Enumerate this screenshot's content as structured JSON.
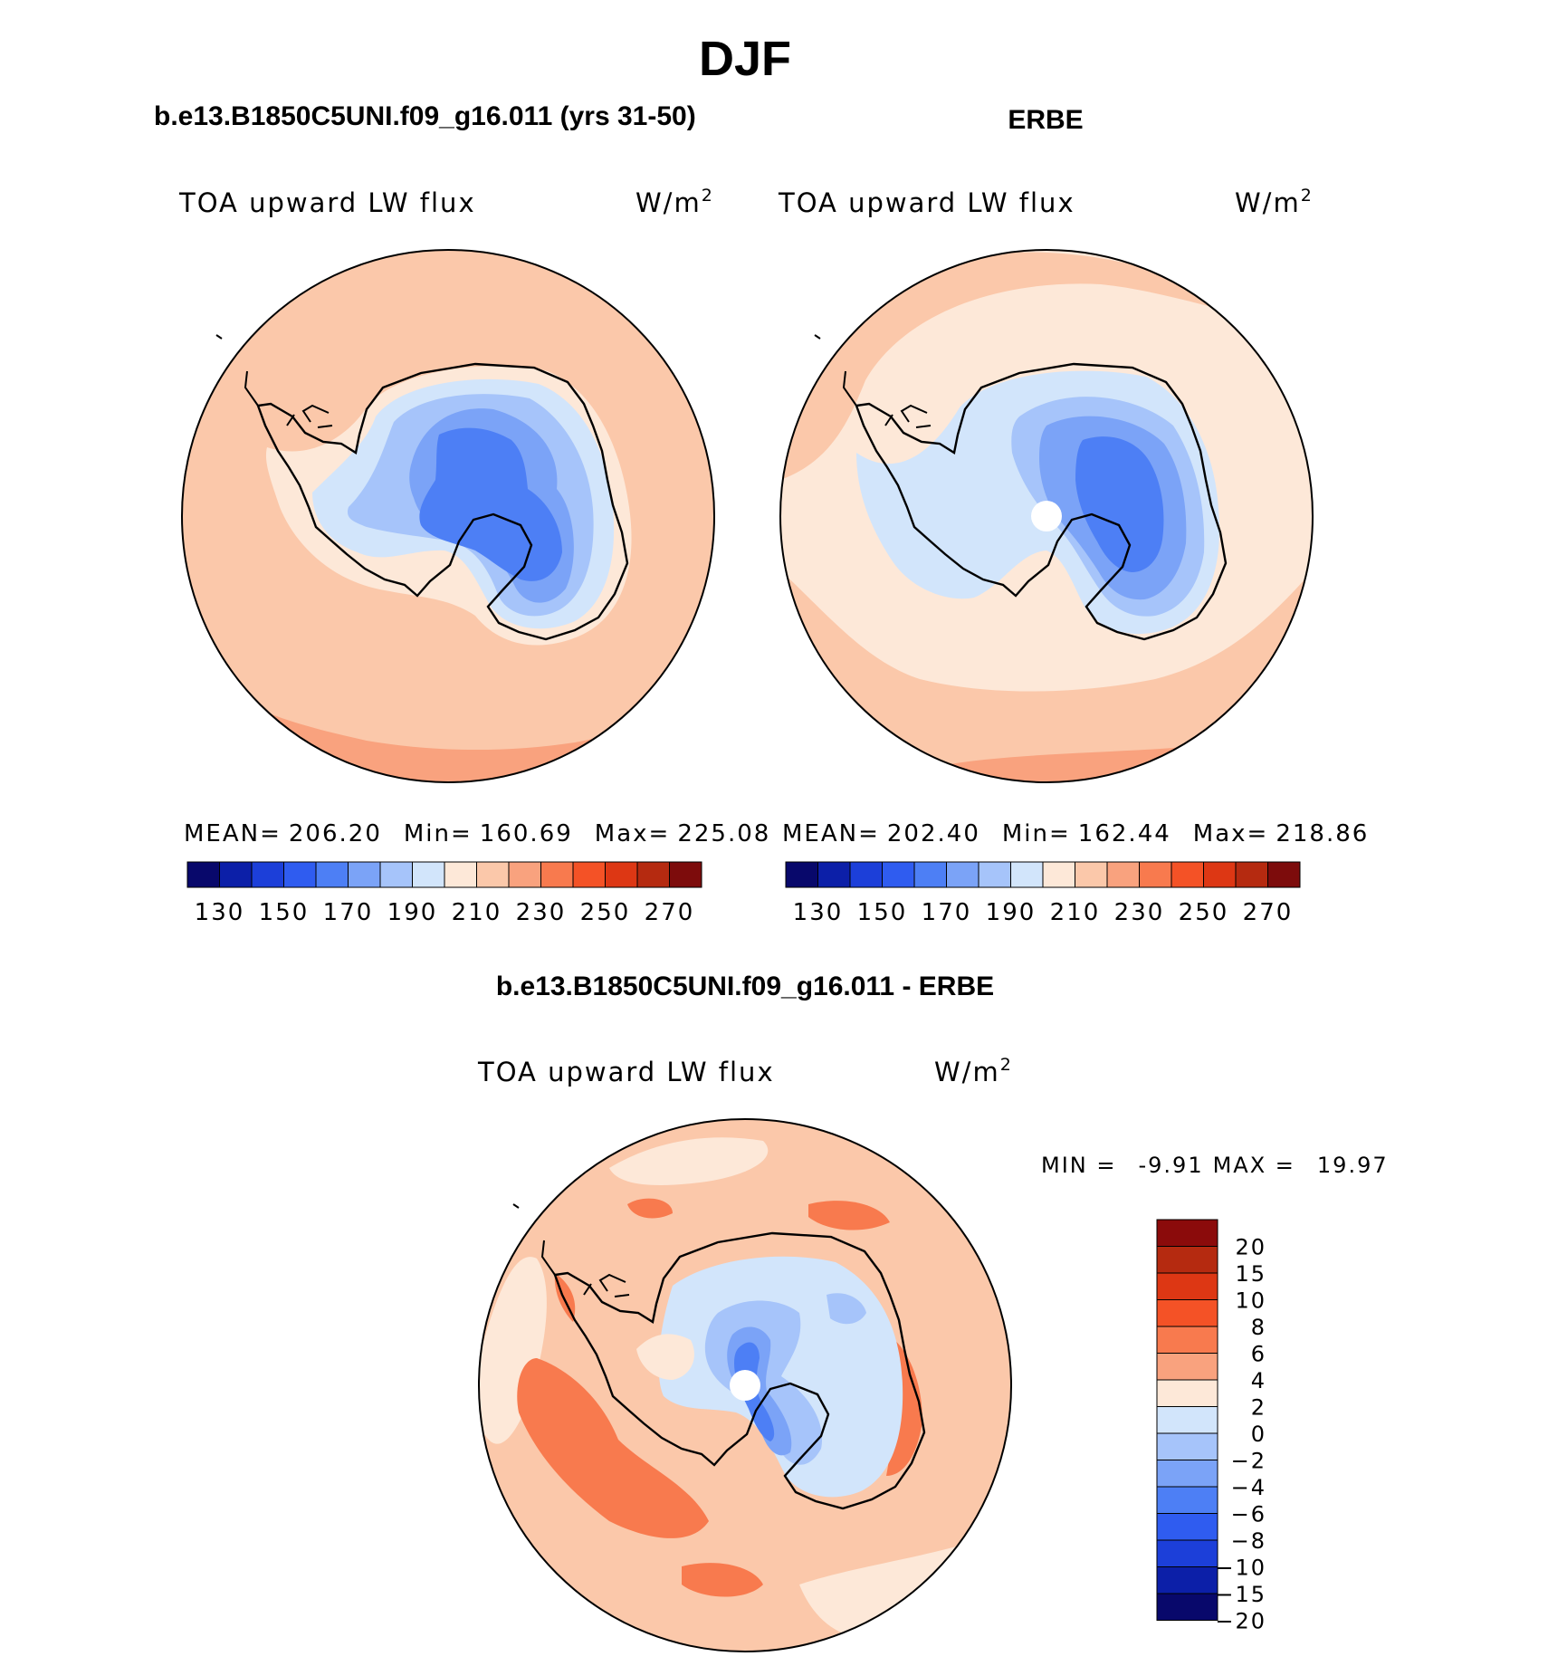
{
  "chart_data": {
    "type": "filled-contour-map",
    "projection": "south-polar-stereographic",
    "title": "DJF",
    "panels": [
      {
        "id": "model",
        "title": "b.e13.B1850C5UNI.f09_g16.011 (yrs 31-50)",
        "variable": "TOA upward LW flux",
        "units_base": "W/m",
        "units_exp": "2",
        "stats": {
          "mean_label": "MEAN=",
          "mean": "206.20",
          "min_label": "Min=",
          "min": "160.69",
          "max_label": "Max=",
          "max": "225.08"
        },
        "colorbar_ticks": [
          "130",
          "150",
          "170",
          "190",
          "210",
          "230",
          "250",
          "270"
        ]
      },
      {
        "id": "obs",
        "title": "ERBE",
        "variable": "TOA upward LW flux",
        "units_base": "W/m",
        "units_exp": "2",
        "stats": {
          "mean_label": "MEAN=",
          "mean": "202.40",
          "min_label": "Min=",
          "min": "162.44",
          "max_label": "Max=",
          "max": "218.86"
        },
        "colorbar_ticks": [
          "130",
          "150",
          "170",
          "190",
          "210",
          "230",
          "250",
          "270"
        ]
      },
      {
        "id": "diff",
        "title": "b.e13.B1850C5UNI.f09_g16.011 - ERBE",
        "variable": "TOA upward LW flux",
        "units_base": "W/m",
        "units_exp": "2",
        "stats": {
          "min_label": "MIN =",
          "min": "-9.91",
          "max_label": "MAX =",
          "max": "19.97"
        },
        "colorbar_ticks": [
          "20",
          "15",
          "10",
          "8",
          "6",
          "4",
          "2",
          "0",
          "−2",
          "−4",
          "−6",
          "−8",
          "−10",
          "−15",
          "−20"
        ]
      }
    ],
    "levels_abs": [
      120,
      130,
      140,
      150,
      160,
      170,
      180,
      190,
      200,
      210,
      220,
      230,
      240,
      250,
      260,
      270,
      280
    ],
    "levels_diff": [
      20,
      15,
      10,
      8,
      6,
      4,
      2,
      0,
      -2,
      -4,
      -6,
      -8,
      -10,
      -15,
      -20
    ]
  },
  "colors": {
    "abs_scale": [
      "#08086b",
      "#0c1fa8",
      "#1c3fd9",
      "#2f5cf0",
      "#4d7ff5",
      "#7ba3f7",
      "#a6c4fa",
      "#d2e5fb",
      "#fde8d8",
      "#fbc8aa",
      "#f9a27e",
      "#f87a4e",
      "#f45226",
      "#dd3714",
      "#b52a10",
      "#7d0c0c"
    ],
    "diff_scale": [
      "#8b0b0b",
      "#b52a10",
      "#dd3714",
      "#f45226",
      "#f87a4e",
      "#f9a27e",
      "#fde8d8",
      "#d2e5fb",
      "#a6c4fa",
      "#7ba3f7",
      "#4d7ff5",
      "#2f5cf0",
      "#1c3fd9",
      "#0c1fa8",
      "#08086b"
    ]
  }
}
